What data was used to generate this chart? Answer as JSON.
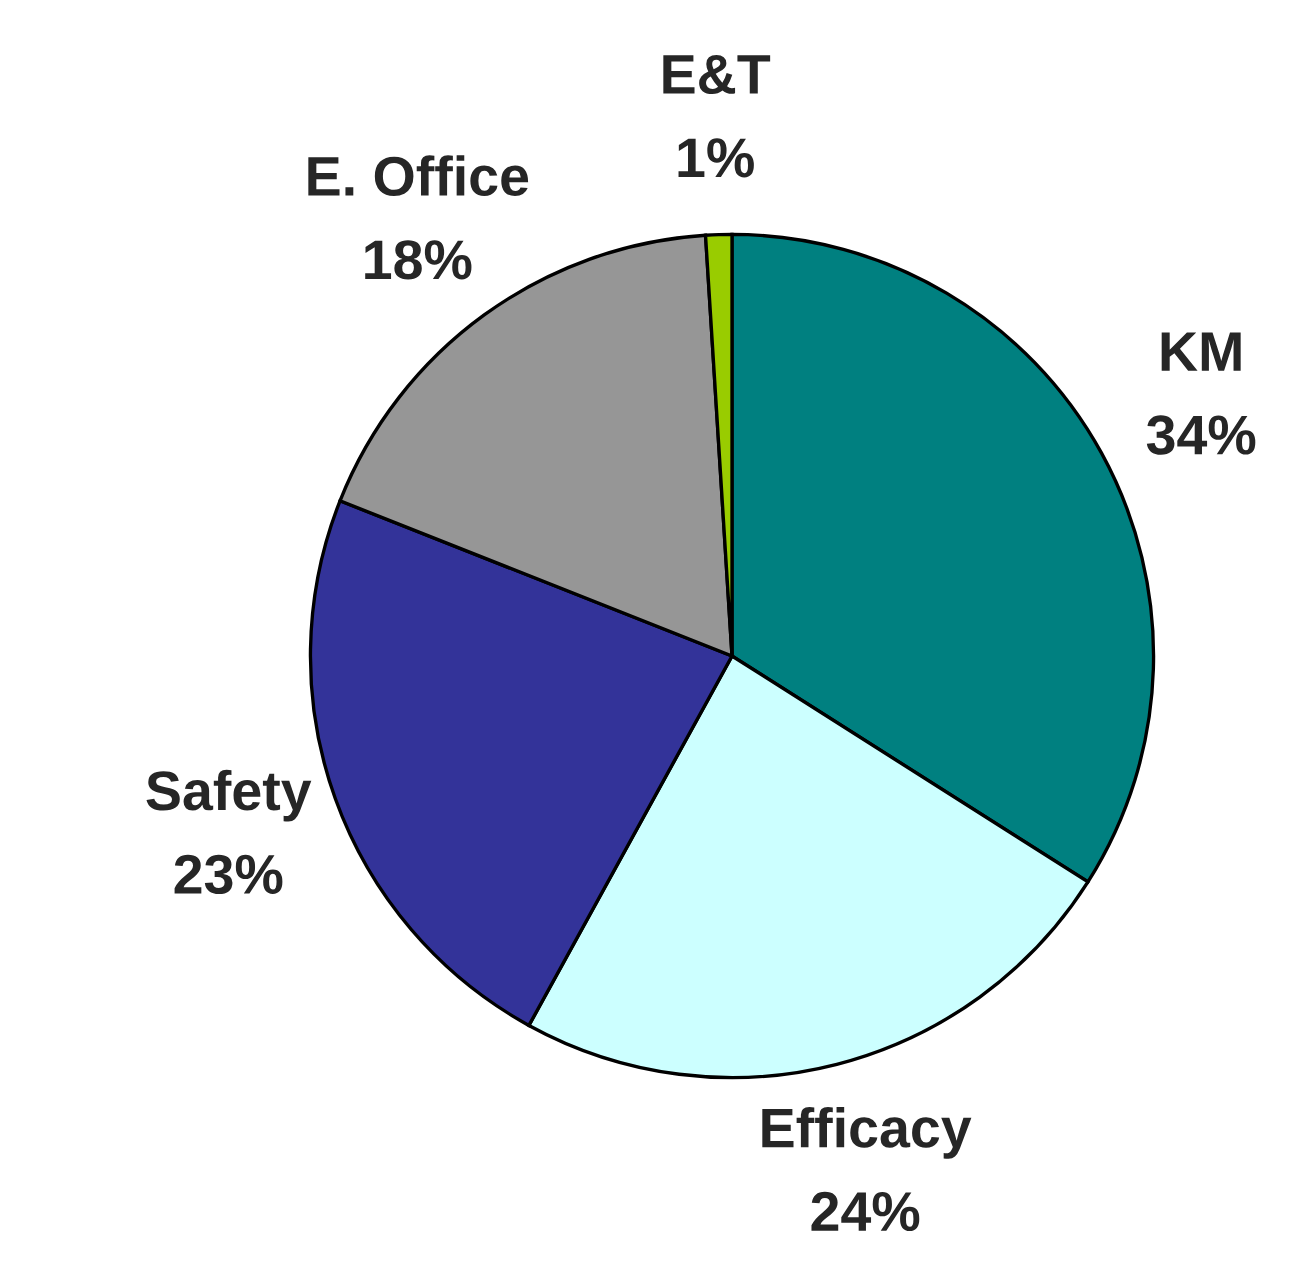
{
  "chart_data": {
    "type": "pie",
    "categories": [
      "KM",
      "Efficacy",
      "Safety",
      "E. Office",
      "E&T"
    ],
    "values": [
      34,
      24,
      23,
      18,
      1
    ],
    "value_labels": [
      "34%",
      "24%",
      "23%",
      "18%",
      "1%"
    ],
    "colors": [
      "#008080",
      "#ccffff",
      "#333399",
      "#969696",
      "#99cc00"
    ],
    "legend": false
  }
}
